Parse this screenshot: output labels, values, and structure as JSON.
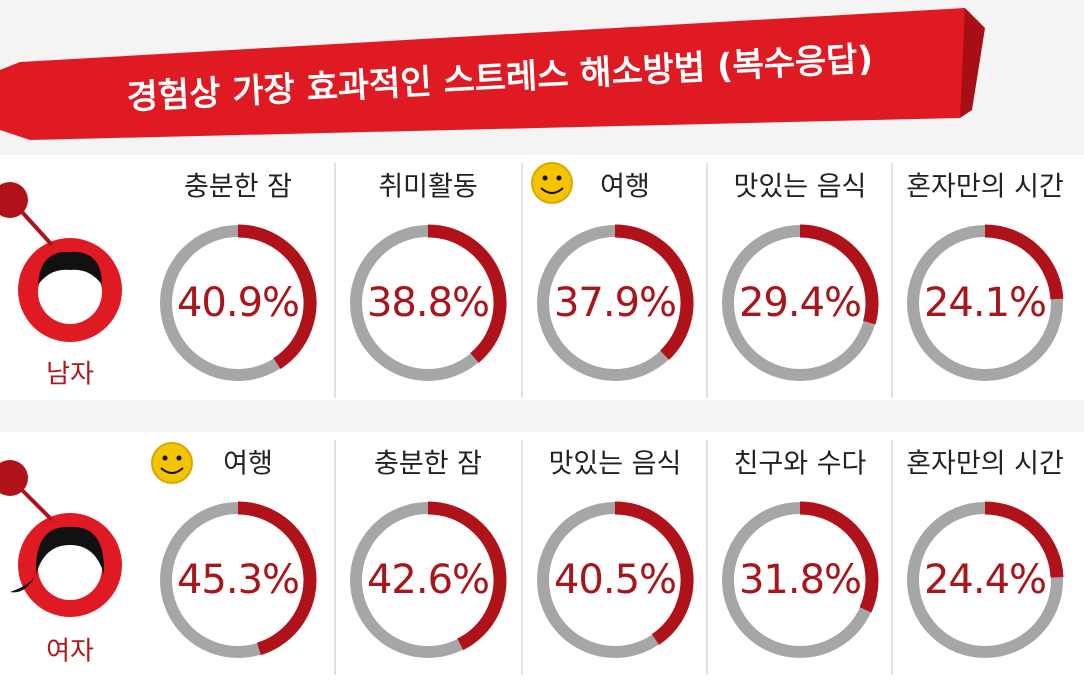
{
  "title": "경험상 가장 효과적인 스트레스 해소방법 (복수응답)",
  "chart_data": [
    {
      "type": "donut",
      "title": "남자",
      "categories": [
        "충분한 잠",
        "취미활동",
        "여행",
        "맛있는 음식",
        "혼자만의 시간"
      ],
      "values": [
        40.9,
        38.8,
        37.9,
        29.4,
        24.1
      ],
      "value_labels": [
        "40.9%",
        "38.8%",
        "37.9%",
        "29.4%",
        "24.1%"
      ],
      "color": "#b0121a",
      "rest_color": "#a6a6a6"
    },
    {
      "type": "donut",
      "title": "여자",
      "categories": [
        "여행",
        "충분한 잠",
        "맛있는 음식",
        "친구와 수다",
        "혼자만의 시간"
      ],
      "values": [
        45.3,
        42.6,
        40.5,
        31.8,
        24.4
      ],
      "value_labels": [
        "45.3%",
        "42.6%",
        "40.5%",
        "31.8%",
        "24.4%"
      ],
      "color": "#b0121a",
      "rest_color": "#a6a6a6"
    }
  ]
}
